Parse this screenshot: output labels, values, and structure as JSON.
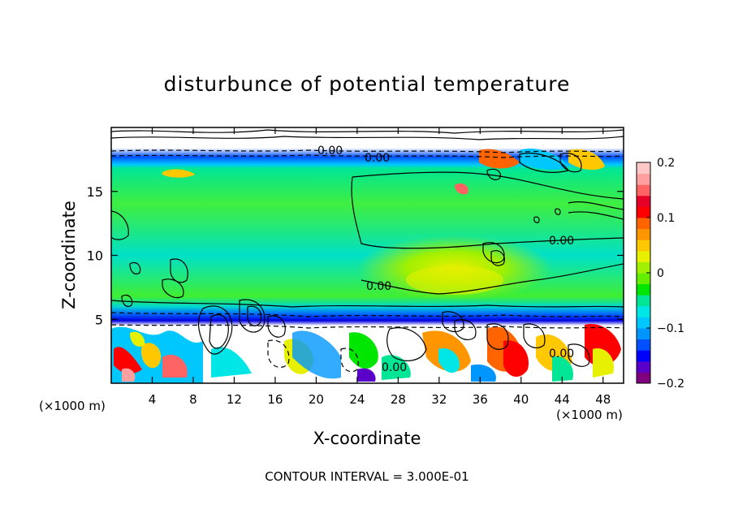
{
  "chart_data": {
    "type": "heatmap",
    "title": "disturbunce of potential temperature",
    "xlabel": "X-coordinate",
    "ylabel": "Z-coordinate",
    "x_unit_left": "(×1000 m)",
    "x_unit_right": "(×1000 m)",
    "xlim": [
      0,
      50
    ],
    "ylim": [
      0,
      20
    ],
    "x_ticks": [
      4,
      8,
      12,
      16,
      20,
      24,
      28,
      32,
      36,
      40,
      44,
      48
    ],
    "y_ticks": [
      5,
      10,
      15
    ],
    "colorbar": {
      "range": [
        -0.2,
        0.2
      ],
      "tick_values": [
        0.2,
        0.1,
        0,
        -0.1,
        -0.2
      ],
      "tick_labels": [
        "0.2",
        "0.1",
        "0",
        "−0.1",
        "−0.2"
      ],
      "colors": [
        "#800080",
        "#5a00c8",
        "#0000ff",
        "#0050ff",
        "#0096ff",
        "#00c8ff",
        "#00e6e6",
        "#00e696",
        "#00e600",
        "#64f000",
        "#a0f000",
        "#e6f000",
        "#ffc800",
        "#ff9600",
        "#ff6400",
        "#ff0000",
        "#e60028",
        "#ff6464",
        "#ffa0a0",
        "#ffc8c8"
      ]
    },
    "contour_labels": [
      "0.00",
      "0.00",
      "0.00",
      "0.00",
      "0.00",
      "0.00"
    ],
    "contour_interval_text": "CONTOUR INTERVAL = 3.000E-01",
    "field_bands": [
      {
        "z": [
          0,
          4.5
        ],
        "value": "mixed",
        "note_value": 0.15
      },
      {
        "z": [
          4.5,
          5.3
        ],
        "value": -0.13
      },
      {
        "z": [
          5.3,
          6.8
        ],
        "value": -0.06
      },
      {
        "z": [
          6.8,
          9.5
        ],
        "value": 0.0
      },
      {
        "z": [
          9.5,
          12.5
        ],
        "value": -0.04
      },
      {
        "z": [
          12.5,
          16.2
        ],
        "value": 0.02
      },
      {
        "z": [
          16.2,
          17.2
        ],
        "value": -0.1
      },
      {
        "z": [
          17.2,
          20
        ],
        "value": "mixed"
      }
    ],
    "positive_region": {
      "x": [
        24,
        40
      ],
      "z": [
        6,
        15
      ],
      "value": 0.05
    }
  }
}
